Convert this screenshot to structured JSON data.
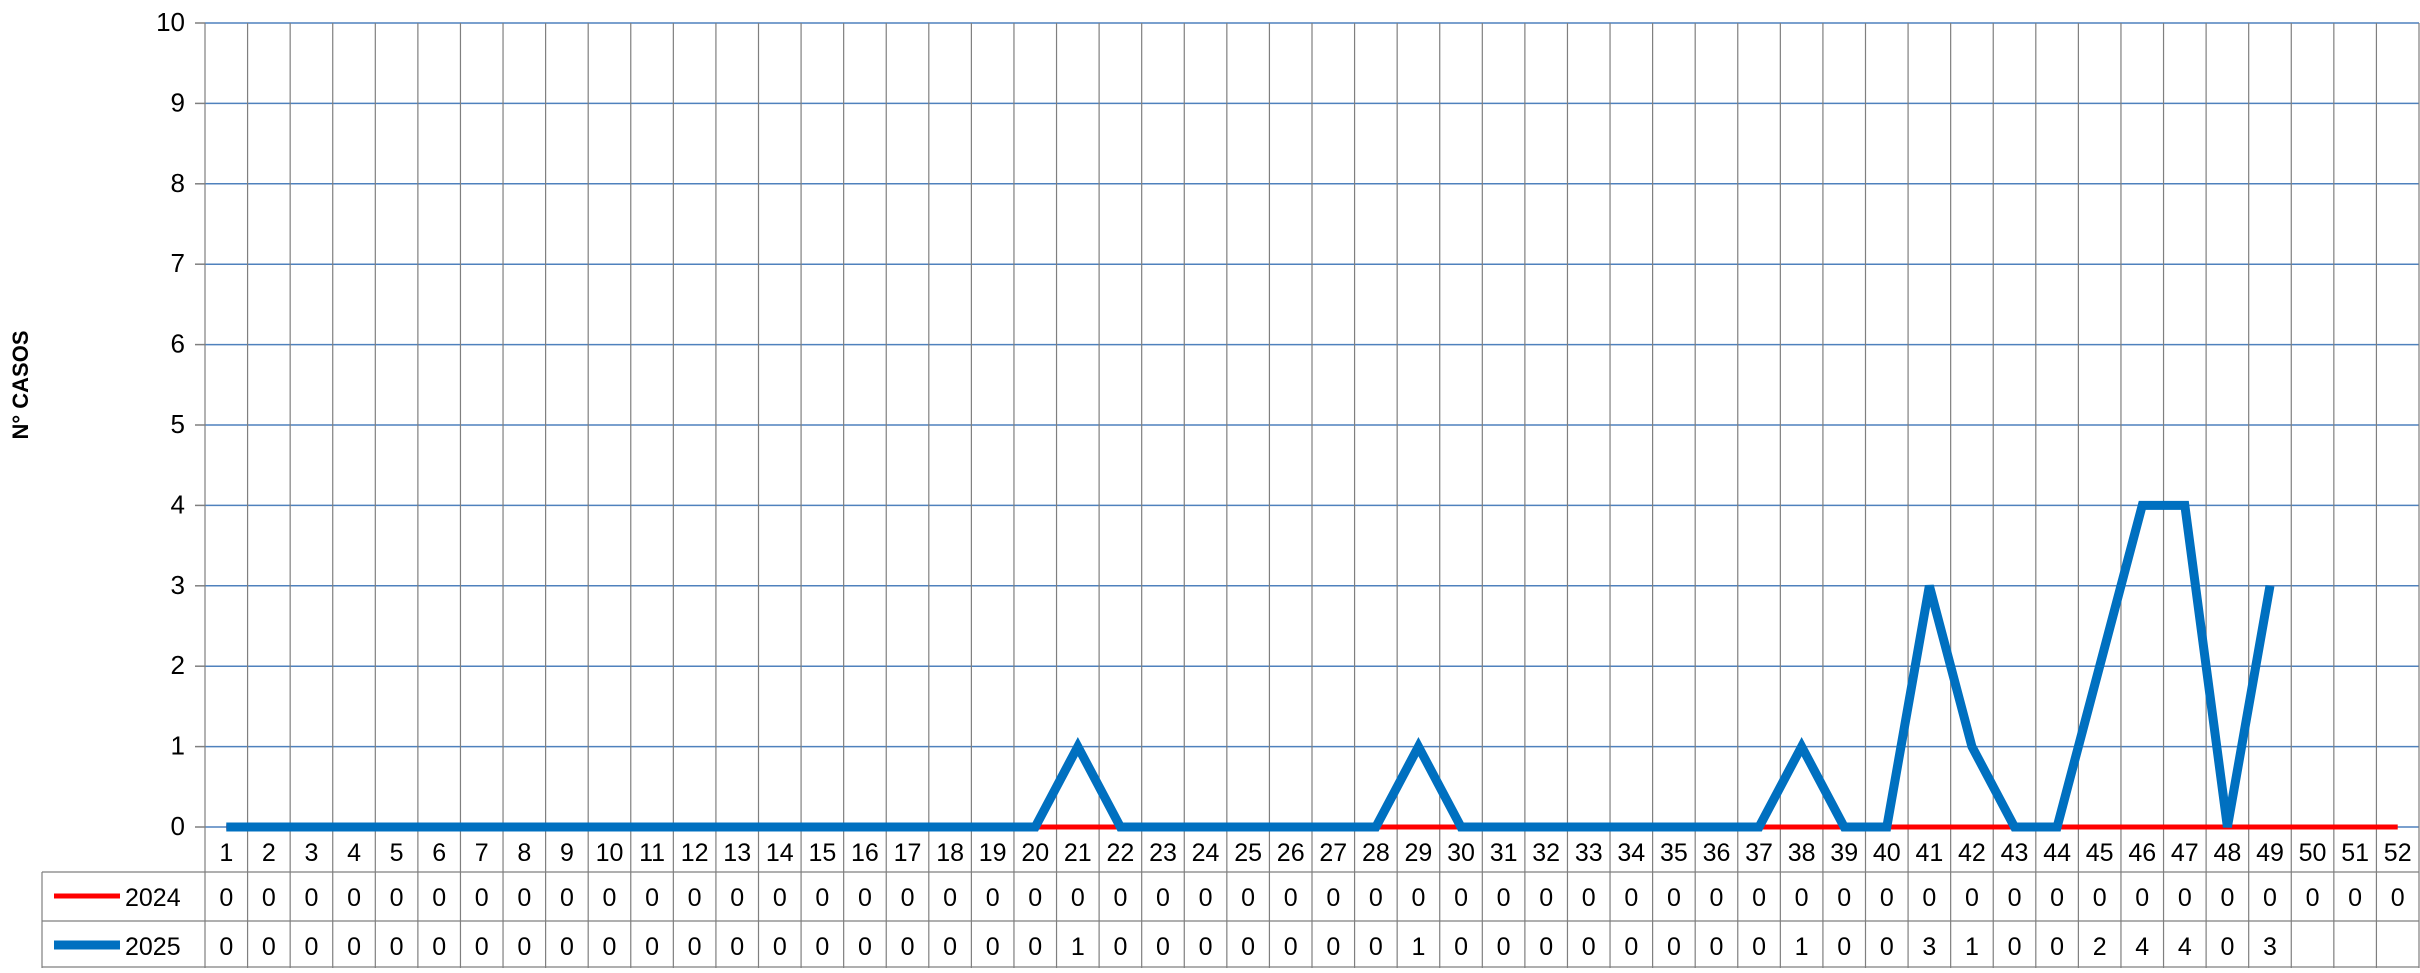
{
  "chart_data": {
    "type": "line",
    "title": "",
    "xlabel": "",
    "ylabel": "N° CASOS",
    "ylim": [
      0,
      10
    ],
    "yticks": [
      0,
      1,
      2,
      3,
      4,
      5,
      6,
      7,
      8,
      9,
      10
    ],
    "grid": true,
    "legend": "data-table-left",
    "categories": [
      "1",
      "2",
      "3",
      "4",
      "5",
      "6",
      "7",
      "8",
      "9",
      "10",
      "11",
      "12",
      "13",
      "14",
      "15",
      "16",
      "17",
      "18",
      "19",
      "20",
      "21",
      "22",
      "23",
      "24",
      "25",
      "26",
      "27",
      "28",
      "29",
      "30",
      "31",
      "32",
      "33",
      "34",
      "35",
      "36",
      "37",
      "38",
      "39",
      "40",
      "41",
      "42",
      "43",
      "44",
      "45",
      "46",
      "47",
      "48",
      "49",
      "50",
      "51",
      "52"
    ],
    "series": [
      {
        "name": "2024",
        "color": "#ff0000",
        "values": [
          0,
          0,
          0,
          0,
          0,
          0,
          0,
          0,
          0,
          0,
          0,
          0,
          0,
          0,
          0,
          0,
          0,
          0,
          0,
          0,
          0,
          0,
          0,
          0,
          0,
          0,
          0,
          0,
          0,
          0,
          0,
          0,
          0,
          0,
          0,
          0,
          0,
          0,
          0,
          0,
          0,
          0,
          0,
          0,
          0,
          0,
          0,
          0,
          0,
          0,
          0,
          0
        ]
      },
      {
        "name": "2025",
        "color": "#0070c0",
        "values": [
          0,
          0,
          0,
          0,
          0,
          0,
          0,
          0,
          0,
          0,
          0,
          0,
          0,
          0,
          0,
          0,
          0,
          0,
          0,
          0,
          1,
          0,
          0,
          0,
          0,
          0,
          0,
          0,
          1,
          0,
          0,
          0,
          0,
          0,
          0,
          0,
          0,
          1,
          0,
          0,
          3,
          1,
          0,
          0,
          2,
          4,
          4,
          0,
          3,
          null,
          null,
          null
        ]
      }
    ]
  }
}
